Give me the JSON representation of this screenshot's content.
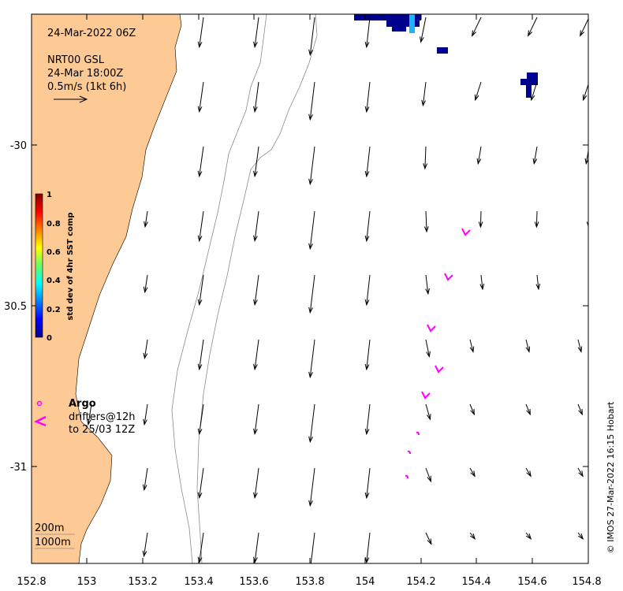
{
  "map": {
    "timestamp": "24-Mar-2022 06Z",
    "product": "NRT00 GSL",
    "product_time": "24-Mar 18:00Z",
    "scale_label": "0.5m/s (1kt 6h)",
    "credit": "© IMOS 27-Mar-2022 16:15 Hobart",
    "x_ticks": [
      "152.8",
      "153",
      "153.2",
      "153.4",
      "153.6",
      "153.8",
      "154",
      "154.2",
      "154.4",
      "154.6",
      "154.8"
    ],
    "y_ticks": [
      "-30",
      "30.5",
      "-31"
    ],
    "colorbar": {
      "title": "std dev of 4hr SST comp",
      "ticks": [
        "1",
        "0.8",
        "0.6",
        "0.4",
        "0.2",
        "0"
      ]
    },
    "legend": {
      "title": "Argo",
      "line1": "drifters@12h",
      "line2": "to 25/03 12Z"
    },
    "depth_labels": [
      "200m",
      "1000m"
    ],
    "colors": {
      "land": "#fdc994",
      "drifter": "#ff00ff",
      "sst_low": "#00008f",
      "sst_mid": "#19b5ff"
    }
  }
}
